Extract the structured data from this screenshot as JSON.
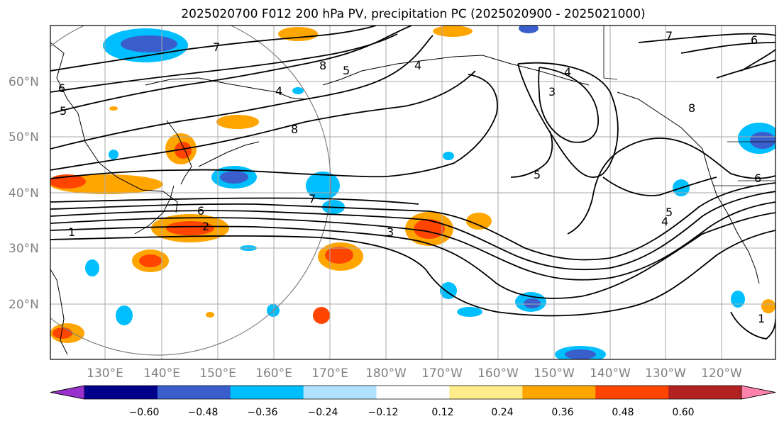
{
  "title": "2025020700 F012 200 hPa PV, precipitation PC (2025020900 - 2025021000)",
  "map": {
    "lat_labels": [
      "60°N",
      "50°N",
      "40°N",
      "30°N",
      "20°N"
    ],
    "lon_labels": [
      "130°E",
      "140°E",
      "150°E",
      "160°E",
      "170°E",
      "180°W",
      "170°W",
      "160°W",
      "150°W",
      "140°W",
      "130°W",
      "120°W"
    ],
    "pv_contour_labels": [
      "7",
      "8",
      "5",
      "4",
      "4",
      "3",
      "4",
      "7",
      "6",
      "6",
      "5",
      "8",
      "8",
      "5",
      "7",
      "6",
      "2",
      "1",
      "3",
      "6",
      "5",
      "4",
      "1"
    ]
  },
  "colorbar": {
    "tick_labels": [
      "−0.60",
      "−0.48",
      "−0.36",
      "−0.24",
      "−0.12",
      "0.12",
      "0.24",
      "0.36",
      "0.48",
      "0.60"
    ],
    "colors": [
      "#9932cc",
      "#00008b",
      "#3a5fcd",
      "#00bfff",
      "#b0e2ff",
      "#ffffff",
      "#ffec8b",
      "#ffa500",
      "#ff4500",
      "#b22222",
      "#ff82ab"
    ]
  }
}
